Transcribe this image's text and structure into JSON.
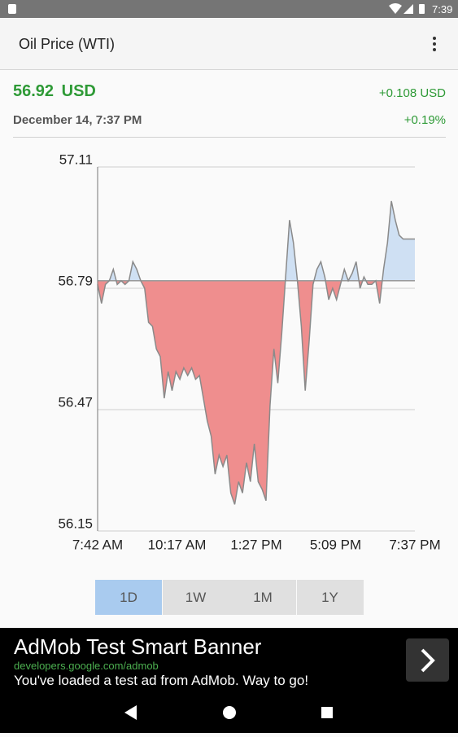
{
  "status_bar": {
    "time": "7:39"
  },
  "app_bar": {
    "title": "Oil Price (WTI)"
  },
  "quote": {
    "price": "56.92",
    "currency": "USD",
    "change": "+0.108 USD",
    "timestamp": "December 14, 7:37 PM",
    "change_percent": "+0.19%"
  },
  "chart_data": {
    "type": "area",
    "values": [
      56.8,
      56.75,
      56.8,
      56.81,
      56.84,
      56.8,
      56.81,
      56.8,
      56.81,
      56.86,
      56.84,
      56.81,
      56.79,
      56.7,
      56.69,
      56.63,
      56.61,
      56.5,
      56.57,
      56.52,
      56.57,
      56.55,
      56.58,
      56.56,
      56.58,
      56.55,
      56.56,
      56.5,
      56.44,
      56.4,
      56.3,
      56.35,
      56.32,
      56.35,
      56.25,
      56.22,
      56.28,
      56.25,
      56.33,
      56.28,
      56.38,
      56.28,
      56.26,
      56.23,
      56.48,
      56.63,
      56.54,
      56.67,
      56.82,
      56.97,
      56.91,
      56.81,
      56.69,
      56.52,
      56.65,
      56.8,
      56.84,
      56.86,
      56.82,
      56.76,
      56.79,
      56.76,
      56.8,
      56.84,
      56.81,
      56.83,
      56.86,
      56.79,
      56.82,
      56.8,
      56.8,
      56.81,
      56.75,
      56.84,
      56.91,
      57.02,
      56.97,
      56.93,
      56.92,
      56.92,
      56.92,
      56.92
    ],
    "reference": 56.81,
    "ylim": [
      56.15,
      57.11
    ],
    "yticks": [
      57.11,
      56.79,
      56.47,
      56.15
    ],
    "xtick_labels": [
      "7:42 AM",
      "10:17 AM",
      "1:27 PM",
      "5:09 PM",
      "7:37 PM"
    ],
    "color": "#8a8a8a",
    "above_color": "#cfe0f3",
    "below_color": "#ef8e8e",
    "grid": true
  },
  "range_buttons": {
    "options": [
      "1D",
      "1W",
      "1M",
      "1Y"
    ],
    "selected": 0
  },
  "ad": {
    "title": "AdMob Test Smart Banner",
    "url": "developers.google.com/admob",
    "text": "You've loaded a test ad from AdMob. Way to go!"
  }
}
